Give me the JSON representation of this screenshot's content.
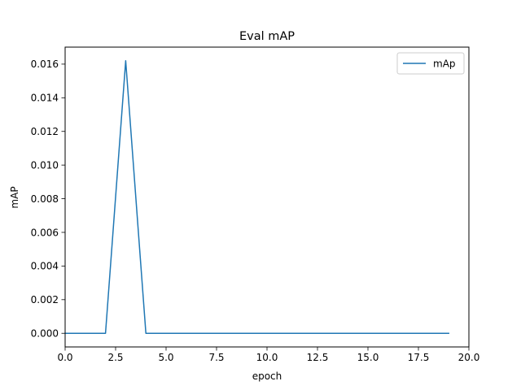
{
  "chart_data": {
    "type": "line",
    "title": "Eval mAP",
    "xlabel": "epoch",
    "ylabel": "mAP",
    "xlim": [
      0.0,
      20.0
    ],
    "ylim": [
      -0.00081,
      0.01701
    ],
    "xticks": [
      0.0,
      2.5,
      5.0,
      7.5,
      10.0,
      12.5,
      15.0,
      17.5,
      20.0
    ],
    "xtick_labels": [
      "0.0",
      "2.5",
      "5.0",
      "7.5",
      "10.0",
      "12.5",
      "15.0",
      "17.5",
      "20.0"
    ],
    "yticks": [
      0.0,
      0.002,
      0.004,
      0.006,
      0.008,
      0.01,
      0.012,
      0.014,
      0.016
    ],
    "ytick_labels": [
      "0.000",
      "0.002",
      "0.004",
      "0.006",
      "0.008",
      "0.010",
      "0.012",
      "0.014",
      "0.016"
    ],
    "grid": false,
    "legend_position": "top-right",
    "series": [
      {
        "name": "mAp",
        "color": "#1f77b4",
        "x": [
          0,
          1,
          2,
          3,
          4,
          5,
          6,
          7,
          8,
          9,
          10,
          11,
          12,
          13,
          14,
          15,
          16,
          17,
          18,
          19
        ],
        "y": [
          0,
          0,
          0,
          0.0162,
          0,
          0,
          0,
          0,
          0,
          0,
          0,
          0,
          0,
          0,
          0,
          0,
          0,
          0,
          0,
          0
        ]
      }
    ]
  }
}
